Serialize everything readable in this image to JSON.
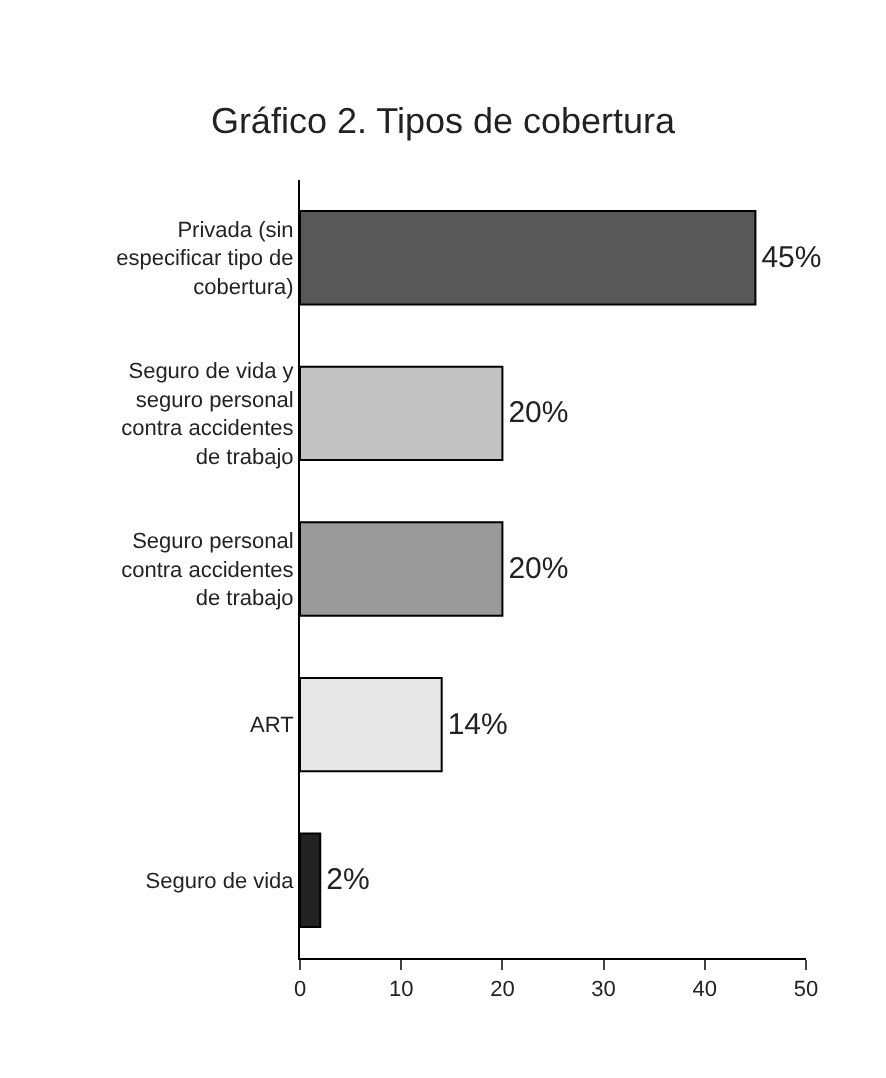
{
  "chart_data": {
    "type": "bar",
    "orientation": "horizontal",
    "title": "Gráfico 2. Tipos de cobertura",
    "categories": [
      "Privada (sin\nespecificar tipo de\ncobertura)",
      "Seguro de vida y\nseguro personal\ncontra accidentes\nde trabajo",
      "Seguro personal\ncontra accidentes\nde trabajo",
      "ART",
      "Seguro de vida"
    ],
    "values": [
      45,
      20,
      20,
      14,
      2
    ],
    "colors": [
      "#585858",
      "#c2c2c2",
      "#9a9a9a",
      "#e8e8e8",
      "#222222"
    ],
    "value_labels": [
      "45%",
      "20%",
      "20%",
      "14%",
      "2%"
    ],
    "xlim": [
      0,
      50
    ],
    "xticks": [
      0,
      10,
      20,
      30,
      40,
      50
    ]
  }
}
